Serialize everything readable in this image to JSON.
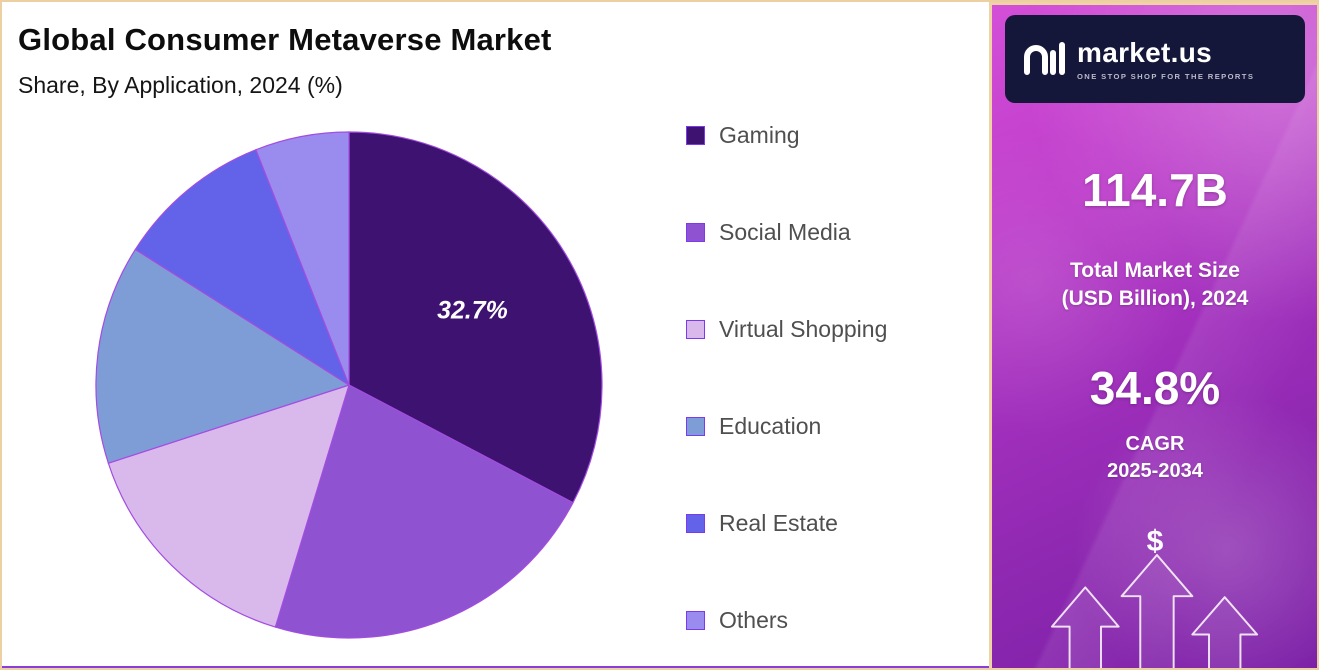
{
  "header": {
    "title": "Global Consumer Metaverse Market",
    "subtitle": "Share, By Application, 2024 (%)"
  },
  "chart_data": {
    "type": "pie",
    "title": "Global Consumer Metaverse Market",
    "subtitle": "Share, By Application, 2024 (%)",
    "categories": [
      "Gaming",
      "Social Media",
      "Virtual Shopping",
      "Education",
      "Real Estate",
      "Others"
    ],
    "values": [
      32.7,
      22.0,
      15.3,
      14.0,
      10.0,
      6.0
    ],
    "colors": [
      "#3E1271",
      "#8F52D0",
      "#D9B8EC",
      "#7E9DD6",
      "#6363EA",
      "#9A8CEE"
    ],
    "stroke_color": "#A34DE0",
    "data_label": "32.7%",
    "labeled_slice_index": 0,
    "start_angle": 0,
    "direction": "clockwise",
    "legend_position": "right"
  },
  "sidebar": {
    "logo_text": "market.us",
    "logo_tagline": "ONE STOP SHOP FOR THE REPORTS",
    "market_size_value": "114.7B",
    "market_size_label_line1": "Total Market Size",
    "market_size_label_line2": "(USD Billion), 2024",
    "cagr_value": "34.8%",
    "cagr_label_line1": "CAGR",
    "cagr_label_line2": "2025-2034",
    "dollar_symbol": "$",
    "colors": {
      "panel_gradient_top": "#D44FD8",
      "panel_gradient_bottom": "#7B1FA6",
      "logo_bar_bg": "#15173A",
      "frame_border": "#ECD0A2",
      "bottom_rule": "#8B3DD8"
    }
  }
}
